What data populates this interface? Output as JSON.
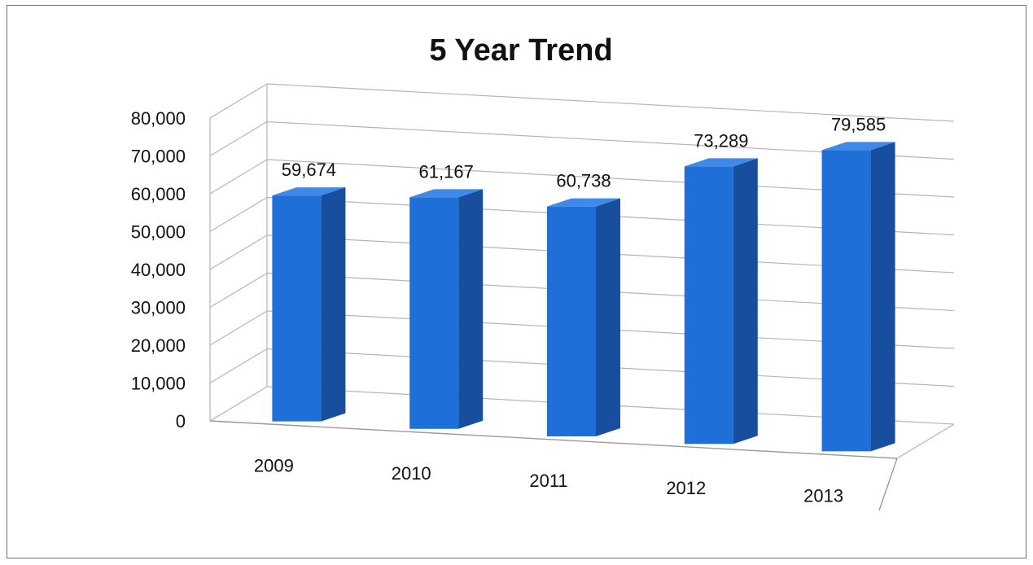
{
  "chart_data": {
    "type": "bar",
    "title": "5 Year Trend",
    "xlabel": "",
    "ylabel": "",
    "categories": [
      "2009",
      "2010",
      "2011",
      "2012",
      "2013"
    ],
    "values": [
      59674,
      61167,
      60738,
      73289,
      79585
    ],
    "value_labels": [
      "59,674",
      "61,167",
      "60,738",
      "73,289",
      "79,585"
    ],
    "ylim": [
      0,
      80000
    ],
    "y_ticks": [
      0,
      10000,
      20000,
      30000,
      40000,
      50000,
      60000,
      70000,
      80000
    ],
    "y_tick_labels": [
      "0",
      "10,000",
      "20,000",
      "30,000",
      "40,000",
      "50,000",
      "60,000",
      "70,000",
      "80,000"
    ],
    "grid": true,
    "legend": "none",
    "style": "3d-column",
    "colors": {
      "bar_front": "#1f6fd8",
      "bar_side": "#174f9e",
      "bar_top": "#3f8ae8",
      "grid": "#b5b5b5",
      "text": "#111111"
    }
  }
}
